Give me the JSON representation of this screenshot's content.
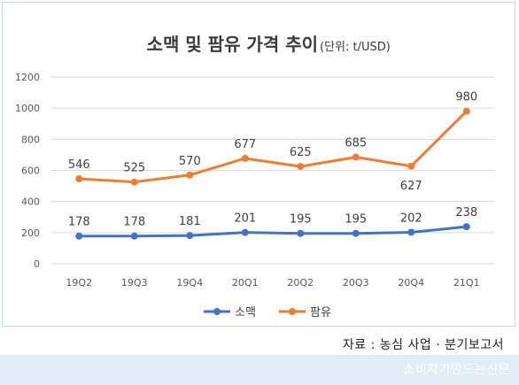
{
  "chart_data": {
    "type": "line",
    "title": "소맥 및 팜유 가격 추이",
    "subtitle": "(단위: t/USD)",
    "categories": [
      "19Q2",
      "19Q3",
      "19Q4",
      "20Q1",
      "20Q2",
      "20Q3",
      "20Q4",
      "21Q1"
    ],
    "series": [
      {
        "name": "소맥",
        "values": [
          178,
          178,
          181,
          201,
          195,
          195,
          202,
          238
        ],
        "color": "#4472c4"
      },
      {
        "name": "팜유",
        "values": [
          546,
          525,
          570,
          677,
          625,
          685,
          627,
          980
        ],
        "color": "#ed7d31"
      }
    ],
    "yticks": [
      0,
      200,
      400,
      600,
      800,
      1000,
      1200
    ],
    "ylim": [
      0,
      1200
    ],
    "grid": true,
    "legend": "bottom"
  },
  "source": "자료 : 농심 사업 · 분기보고서",
  "watermark": "소비자가만드는신문"
}
